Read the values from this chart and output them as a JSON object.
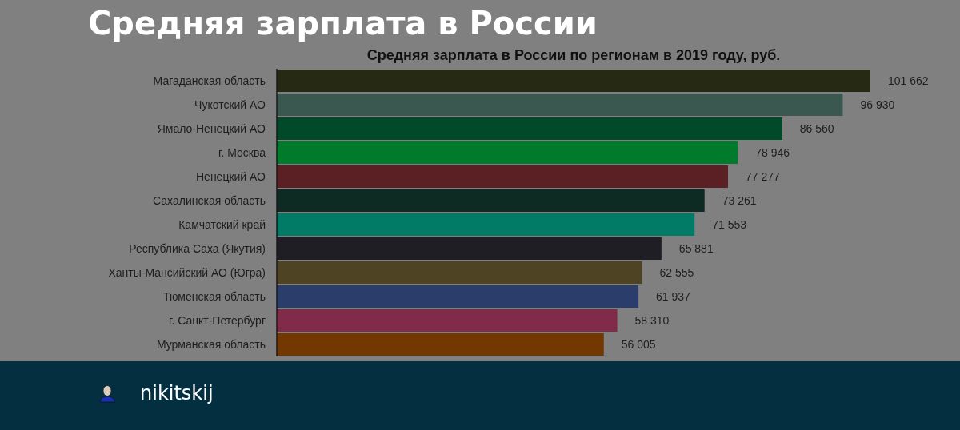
{
  "chart_data": {
    "type": "bar",
    "orientation": "horizontal",
    "title": "Средняя зарплата в России",
    "subtitle": "Средняя зарплата в России по регионам в 2019 году, руб.",
    "categories": [
      "Магаданская область",
      "Чукотский АО",
      "Ямало-Ненецкий АО",
      "г. Москва",
      "Ненецкий АО",
      "Сахалинская область",
      "Камчатский край",
      "Республика Саха (Якутия)",
      "Ханты-Мансийский АО (Югра)",
      "Тюменская область",
      "г. Санкт-Петербург",
      "Мурманская область"
    ],
    "values": [
      101662,
      96930,
      86560,
      78946,
      77277,
      73261,
      71553,
      65881,
      62555,
      61937,
      58310,
      56005
    ],
    "value_labels": [
      "101 662",
      "96 930",
      "86 560",
      "78 946",
      "77 277",
      "73 261",
      "71 553",
      "65 881",
      "62 555",
      "61 937",
      "58 310",
      "56 005"
    ],
    "colors": [
      "#262a14",
      "#3b5850",
      "#004a2a",
      "#007a2b",
      "#5a2024",
      "#0d2a23",
      "#017a66",
      "#1f1e24",
      "#4e4424",
      "#2b3d6b",
      "#822a4a",
      "#733700"
    ],
    "annotations": [
      "nikitskij"
    ]
  }
}
